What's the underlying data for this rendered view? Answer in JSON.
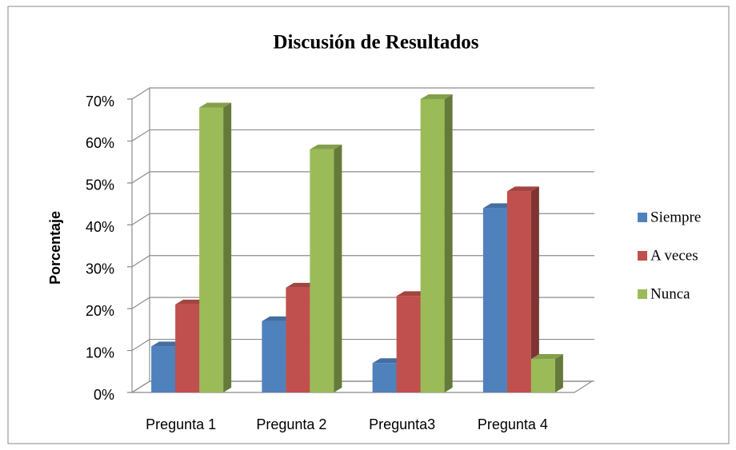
{
  "chart_data": {
    "type": "bar3d",
    "title": "Discusión de Resultados",
    "y_label": "Porcentaje",
    "categories": [
      "Pregunta 1",
      "Pregunta 2",
      "Pregunta3",
      "Pregunta 4"
    ],
    "series": [
      {
        "name": "Siempre",
        "color": "#4f81bd",
        "values": [
          11,
          17,
          7,
          44
        ]
      },
      {
        "name": "A veces",
        "color": "#c0504d",
        "values": [
          21,
          25,
          23,
          48
        ]
      },
      {
        "name": "Nunca",
        "color": "#9bbb59",
        "values": [
          68,
          58,
          70,
          8
        ]
      }
    ],
    "ylim": [
      0,
      70
    ],
    "yticks": [
      {
        "value": 0,
        "label": "0%"
      },
      {
        "value": 10,
        "label": "10%"
      },
      {
        "value": 20,
        "label": "20%"
      },
      {
        "value": 30,
        "label": "30%"
      },
      {
        "value": 40,
        "label": "40%"
      },
      {
        "value": 50,
        "label": "50%"
      },
      {
        "value": 60,
        "label": "60%"
      },
      {
        "value": 70,
        "label": "70%"
      }
    ],
    "grid": true,
    "legend": "right"
  }
}
